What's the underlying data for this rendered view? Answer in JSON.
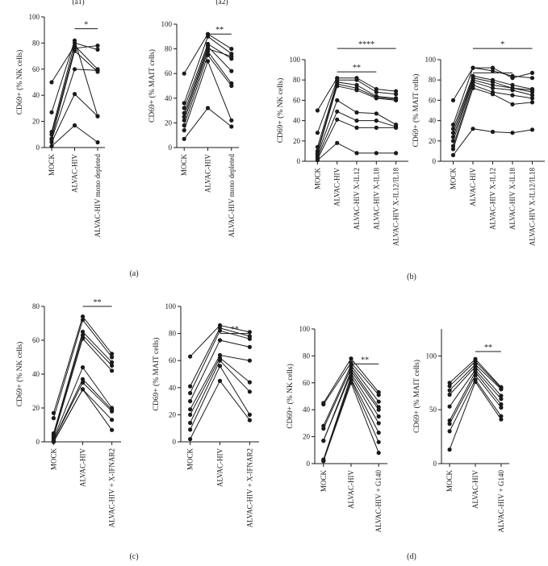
{
  "panel_labels": [
    "(a)",
    "(b)",
    "(c)",
    "(d)"
  ],
  "colors": {
    "ink": "#1a1a1a",
    "background": "#ffffff"
  },
  "chart_data": [
    {
      "id": "a1",
      "type": "line",
      "subtitle": "(a1)",
      "ylabel": "CD69+ (% NK cells)",
      "ylim": [
        0,
        100
      ],
      "yticks": [
        0,
        20,
        40,
        60,
        80,
        100
      ],
      "categories": [
        "MOCK",
        "ALVAC-HIV",
        "ALVAC-HIV mono depleted"
      ],
      "series": [
        {
          "values": [
            50,
            78,
            60
          ]
        },
        {
          "values": [
            27,
            82,
            24
          ]
        },
        {
          "values": [
            12,
            80,
            75
          ]
        },
        {
          "values": [
            10,
            76,
            78
          ]
        },
        {
          "values": [
            7,
            74,
            58
          ]
        },
        {
          "values": [
            6,
            60,
            59
          ]
        },
        {
          "values": [
            4,
            41,
            24
          ]
        },
        {
          "values": [
            1,
            17,
            4
          ]
        }
      ],
      "significance": [
        {
          "from": 1,
          "to": 2,
          "label": "*",
          "y": 91
        }
      ]
    },
    {
      "id": "a2",
      "type": "line",
      "subtitle": "(a2)",
      "ylabel": "CD69+ (% MAIT cells)",
      "ylim": [
        0,
        100
      ],
      "yticks": [
        0,
        20,
        40,
        60,
        80,
        100
      ],
      "categories": [
        "MOCK",
        "ALVAC-HIV",
        "ALVAC-HIV mono depleted"
      ],
      "series": [
        {
          "values": [
            60,
            92,
            80
          ]
        },
        {
          "values": [
            36,
            90,
            76
          ]
        },
        {
          "values": [
            32,
            84,
            72
          ]
        },
        {
          "values": [
            28,
            82,
            62
          ]
        },
        {
          "values": [
            25,
            80,
            74
          ]
        },
        {
          "values": [
            22,
            78,
            52
          ]
        },
        {
          "values": [
            18,
            75,
            50
          ]
        },
        {
          "values": [
            14,
            70,
            22
          ]
        },
        {
          "values": [
            7,
            32,
            17
          ]
        }
      ],
      "significance": [
        {
          "from": 1,
          "to": 2,
          "label": "**",
          "y": 92
        }
      ]
    },
    {
      "id": "b1",
      "type": "line",
      "ylabel": "CD69+ (% NK cells)",
      "ylim": [
        0,
        100
      ],
      "yticks": [
        0,
        20,
        40,
        60,
        80,
        100
      ],
      "categories": [
        "MOCK",
        "ALVAC-HIV",
        "ALVAC-HIV X-IL12",
        "ALVAC-HIV X-IL18",
        "ALVAC-HIV X-IL12/IL18"
      ],
      "series": [
        {
          "values": [
            50,
            82,
            82,
            71,
            69
          ]
        },
        {
          "values": [
            28,
            80,
            80,
            68,
            66
          ]
        },
        {
          "values": [
            14,
            78,
            75,
            64,
            62
          ]
        },
        {
          "values": [
            10,
            76,
            72,
            63,
            61
          ]
        },
        {
          "values": [
            8,
            74,
            70,
            62,
            60
          ]
        },
        {
          "values": [
            6,
            60,
            48,
            47,
            36
          ]
        },
        {
          "values": [
            4,
            49,
            40,
            40,
            34
          ]
        },
        {
          "values": [
            2,
            41,
            33,
            33,
            33
          ]
        },
        {
          "values": [
            1,
            18,
            8,
            8,
            8
          ]
        }
      ],
      "significance": [
        {
          "from": 1,
          "to": 3,
          "label": "**",
          "y": 88
        },
        {
          "from": 1,
          "to": 4,
          "label": "****",
          "y": 111
        }
      ]
    },
    {
      "id": "b2",
      "type": "line",
      "ylabel": "CD69+ (% MAIT cells)",
      "ylim": [
        0,
        100
      ],
      "yticks": [
        0,
        20,
        40,
        60,
        80,
        100
      ],
      "categories": [
        "MOCK",
        "ALVAC-HIV",
        "ALVAC-HIV X-IL12",
        "ALVAC-HIV X-IL18",
        "ALVAC-HIV X-IL12/IL18"
      ],
      "series": [
        {
          "values": [
            60,
            92,
            92,
            82,
            87
          ]
        },
        {
          "values": [
            36,
            92,
            89,
            84,
            82
          ]
        },
        {
          "values": [
            32,
            84,
            80,
            75,
            71
          ]
        },
        {
          "values": [
            28,
            82,
            78,
            72,
            70
          ]
        },
        {
          "values": [
            24,
            80,
            75,
            72,
            68
          ]
        },
        {
          "values": [
            20,
            78,
            72,
            70,
            65
          ]
        },
        {
          "values": [
            15,
            75,
            68,
            65,
            62
          ]
        },
        {
          "values": [
            12,
            72,
            66,
            56,
            58
          ]
        },
        {
          "values": [
            6,
            32,
            29,
            28,
            31
          ]
        }
      ],
      "significance": [
        {
          "from": 1,
          "to": 3,
          "label": "*",
          "y": 87
        },
        {
          "from": 1,
          "to": 4,
          "label": "*",
          "y": 111
        }
      ]
    },
    {
      "id": "c1",
      "type": "line",
      "ylabel": "CD69+ (% NK cells)",
      "ylim": [
        0,
        80
      ],
      "yticks": [
        0,
        20,
        40,
        60,
        80
      ],
      "categories": [
        "MOCK",
        "ALVAC-HIV",
        "ALVAC-HIV + X-IFNAR2"
      ],
      "series": [
        {
          "values": [
            17,
            74,
            52
          ]
        },
        {
          "values": [
            14,
            72,
            50
          ]
        },
        {
          "values": [
            5,
            65,
            47
          ]
        },
        {
          "values": [
            4,
            63,
            45
          ]
        },
        {
          "values": [
            3,
            61,
            42
          ]
        },
        {
          "values": [
            2,
            44,
            20
          ]
        },
        {
          "values": [
            1,
            37,
            19
          ]
        },
        {
          "values": [
            1,
            35,
            18
          ]
        },
        {
          "values": [
            0,
            31,
            13
          ]
        },
        {
          "values": [
            0,
            31,
            7
          ]
        }
      ],
      "significance": [
        {
          "from": 1,
          "to": 2,
          "label": "**",
          "y": 80
        }
      ]
    },
    {
      "id": "c2",
      "type": "line",
      "ylabel": "CD69+ (% MAIT cells)",
      "ylim": [
        0,
        100
      ],
      "yticks": [
        0,
        20,
        40,
        60,
        80,
        100
      ],
      "categories": [
        "MOCK",
        "ALVAC-HIV",
        "ALVAC-HIV + X-IFNAR2"
      ],
      "series": [
        {
          "values": [
            63,
            86,
            81
          ]
        },
        {
          "values": [
            41,
            84,
            78
          ]
        },
        {
          "values": [
            36,
            82,
            76
          ]
        },
        {
          "values": [
            30,
            75,
            70
          ]
        },
        {
          "values": [
            24,
            64,
            60
          ]
        },
        {
          "values": [
            20,
            62,
            44
          ]
        },
        {
          "values": [
            14,
            60,
            37
          ]
        },
        {
          "values": [
            9,
            56,
            20
          ]
        },
        {
          "values": [
            2,
            45,
            16
          ]
        }
      ],
      "significance": [
        {
          "from": 1,
          "to": 2,
          "label": "**",
          "y": 80
        }
      ]
    },
    {
      "id": "d1",
      "type": "line",
      "ylabel": "CD69+ (% NK cells)",
      "ylim": [
        0,
        100
      ],
      "yticks": [
        0,
        20,
        40,
        60,
        80,
        100
      ],
      "categories": [
        "MOCK",
        "ALVAC-HIV",
        "ALVAC-HIV + G140"
      ],
      "series": [
        {
          "values": [
            45,
            78,
            53
          ]
        },
        {
          "values": [
            44,
            75,
            51
          ]
        },
        {
          "values": [
            28,
            73,
            46
          ]
        },
        {
          "values": [
            26,
            71,
            42
          ]
        },
        {
          "values": [
            17,
            69,
            40
          ]
        },
        {
          "values": [
            17,
            67,
            35
          ]
        },
        {
          "values": [
            3,
            65,
            30
          ]
        },
        {
          "values": [
            2,
            63,
            23
          ]
        },
        {
          "values": [
            2,
            62,
            16
          ]
        },
        {
          "values": [
            2,
            60,
            8
          ]
        }
      ],
      "significance": [
        {
          "from": 1,
          "to": 2,
          "label": "**",
          "y": 74
        }
      ]
    },
    {
      "id": "d2",
      "type": "line",
      "ylabel": "CD69+ (% MAIT cells)",
      "ylim": [
        0,
        125
      ],
      "yticks": [
        0,
        50,
        100
      ],
      "categories": [
        "MOCK",
        "ALVAC-HIV",
        "ALVAC-HIV + G140"
      ],
      "series": [
        {
          "values": [
            75,
            97,
            71
          ]
        },
        {
          "values": [
            72,
            95,
            70
          ]
        },
        {
          "values": [
            68,
            92,
            69
          ]
        },
        {
          "values": [
            64,
            90,
            63
          ]
        },
        {
          "values": [
            53,
            87,
            60
          ]
        },
        {
          "values": [
            40,
            85,
            55
          ]
        },
        {
          "values": [
            37,
            82,
            52
          ]
        },
        {
          "values": [
            30,
            78,
            44
          ]
        },
        {
          "values": [
            13,
            76,
            41
          ]
        }
      ],
      "significance": [
        {
          "from": 1,
          "to": 2,
          "label": "**",
          "y": 104
        }
      ]
    }
  ]
}
